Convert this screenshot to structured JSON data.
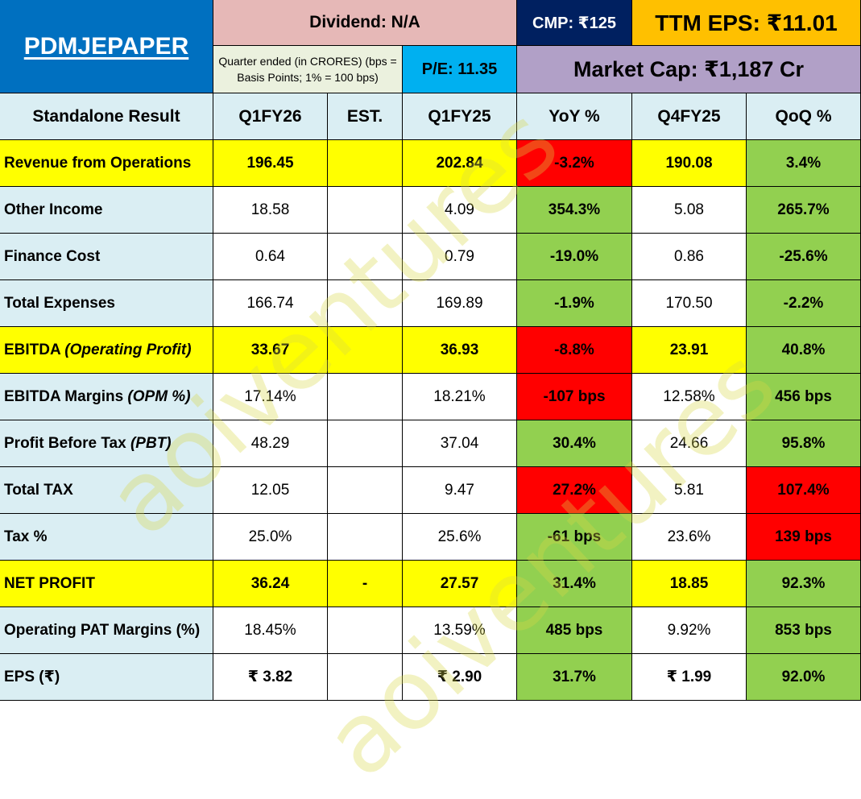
{
  "header": {
    "brand": "PDMJEPAPER",
    "dividend": "Dividend: N/A",
    "cmp": "CMP: ₹125",
    "ttm_eps": "TTM EPS: ₹11.01",
    "note": "Quarter ended (in CRORES) (bps = Basis Points; 1% = 100 bps)",
    "pe": "P/E: 11.35",
    "market_cap": "Market Cap: ₹1,187 Cr"
  },
  "columns": [
    "Standalone Result",
    "Q1FY26",
    "EST.",
    "Q1FY25",
    "YoY %",
    "Q4FY25",
    "QoQ %"
  ],
  "rows": [
    {
      "label": "Revenue from Operations",
      "label_em": "",
      "q1fy26": "196.45",
      "est": "",
      "q1fy25": "202.84",
      "yoy": "-3.2%",
      "q4fy25": "190.08",
      "qoq": "3.4%",
      "highlight": true,
      "yoy_color": "red",
      "qoq_color": "green"
    },
    {
      "label": "Other Income",
      "label_em": "",
      "q1fy26": "18.58",
      "est": "",
      "q1fy25": "4.09",
      "yoy": "354.3%",
      "q4fy25": "5.08",
      "qoq": "265.7%",
      "highlight": false,
      "yoy_color": "green",
      "qoq_color": "green"
    },
    {
      "label": "Finance Cost",
      "label_em": "",
      "q1fy26": "0.64",
      "est": "",
      "q1fy25": "0.79",
      "yoy": "-19.0%",
      "q4fy25": "0.86",
      "qoq": "-25.6%",
      "highlight": false,
      "yoy_color": "green",
      "qoq_color": "green"
    },
    {
      "label": "Total Expenses",
      "label_em": "",
      "q1fy26": "166.74",
      "est": "",
      "q1fy25": "169.89",
      "yoy": "-1.9%",
      "q4fy25": "170.50",
      "qoq": "-2.2%",
      "highlight": false,
      "yoy_color": "green",
      "qoq_color": "green"
    },
    {
      "label": "EBITDA ",
      "label_em": "(Operating Profit)",
      "q1fy26": "33.67",
      "est": "",
      "q1fy25": "36.93",
      "yoy": "-8.8%",
      "q4fy25": "23.91",
      "qoq": "40.8%",
      "highlight": true,
      "yoy_color": "red",
      "qoq_color": "green"
    },
    {
      "label": "EBITDA Margins ",
      "label_em": "(OPM %)",
      "q1fy26": "17.14%",
      "est": "",
      "q1fy25": "18.21%",
      "yoy": "-107 bps",
      "q4fy25": "12.58%",
      "qoq": "456 bps",
      "highlight": false,
      "yoy_color": "red",
      "qoq_color": "green"
    },
    {
      "label": "Profit Before Tax ",
      "label_em": "(PBT)",
      "q1fy26": "48.29",
      "est": "",
      "q1fy25": "37.04",
      "yoy": "30.4%",
      "q4fy25": "24.66",
      "qoq": "95.8%",
      "highlight": false,
      "yoy_color": "green",
      "qoq_color": "green"
    },
    {
      "label": "Total TAX",
      "label_em": "",
      "q1fy26": "12.05",
      "est": "",
      "q1fy25": "9.47",
      "yoy": "27.2%",
      "q4fy25": "5.81",
      "qoq": "107.4%",
      "highlight": false,
      "yoy_color": "red",
      "qoq_color": "red"
    },
    {
      "label": "Tax %",
      "label_em": "",
      "q1fy26": "25.0%",
      "est": "",
      "q1fy25": "25.6%",
      "yoy": "-61 bps",
      "q4fy25": "23.6%",
      "qoq": "139 bps",
      "highlight": false,
      "yoy_color": "green",
      "qoq_color": "red"
    },
    {
      "label": "NET PROFIT",
      "label_em": "",
      "q1fy26": "36.24",
      "est": "-",
      "q1fy25": "27.57",
      "yoy": "31.4%",
      "q4fy25": "18.85",
      "qoq": "92.3%",
      "highlight": true,
      "yoy_color": "green",
      "qoq_color": "green"
    },
    {
      "label": "Operating PAT Margins (%)",
      "label_em": "",
      "q1fy26": "18.45%",
      "est": "",
      "q1fy25": "13.59%",
      "yoy": "485 bps",
      "q4fy25": "9.92%",
      "qoq": "853 bps",
      "highlight": false,
      "yoy_color": "green",
      "qoq_color": "green"
    },
    {
      "label": "EPS (₹)",
      "label_em": "",
      "q1fy26": "₹ 3.82",
      "est": "",
      "q1fy25": "₹ 2.90",
      "yoy": "31.7%",
      "q4fy25": "₹ 1.99",
      "qoq": "92.0%",
      "highlight": false,
      "bold_values": true,
      "yoy_color": "green",
      "qoq_color": "green"
    }
  ],
  "watermark": "aoiventures",
  "colors": {
    "brand_bg": "#0070c0",
    "dividend_bg": "#e6b8b7",
    "cmp_bg": "#002060",
    "ttm_bg": "#ffc000",
    "note_bg": "#ebf1de",
    "pe_bg": "#00b0f0",
    "mcap_bg": "#b1a0c7",
    "label_bg": "#daeef3",
    "highlight": "#ffff00",
    "negative": "#ff0000",
    "positive": "#92d050"
  }
}
